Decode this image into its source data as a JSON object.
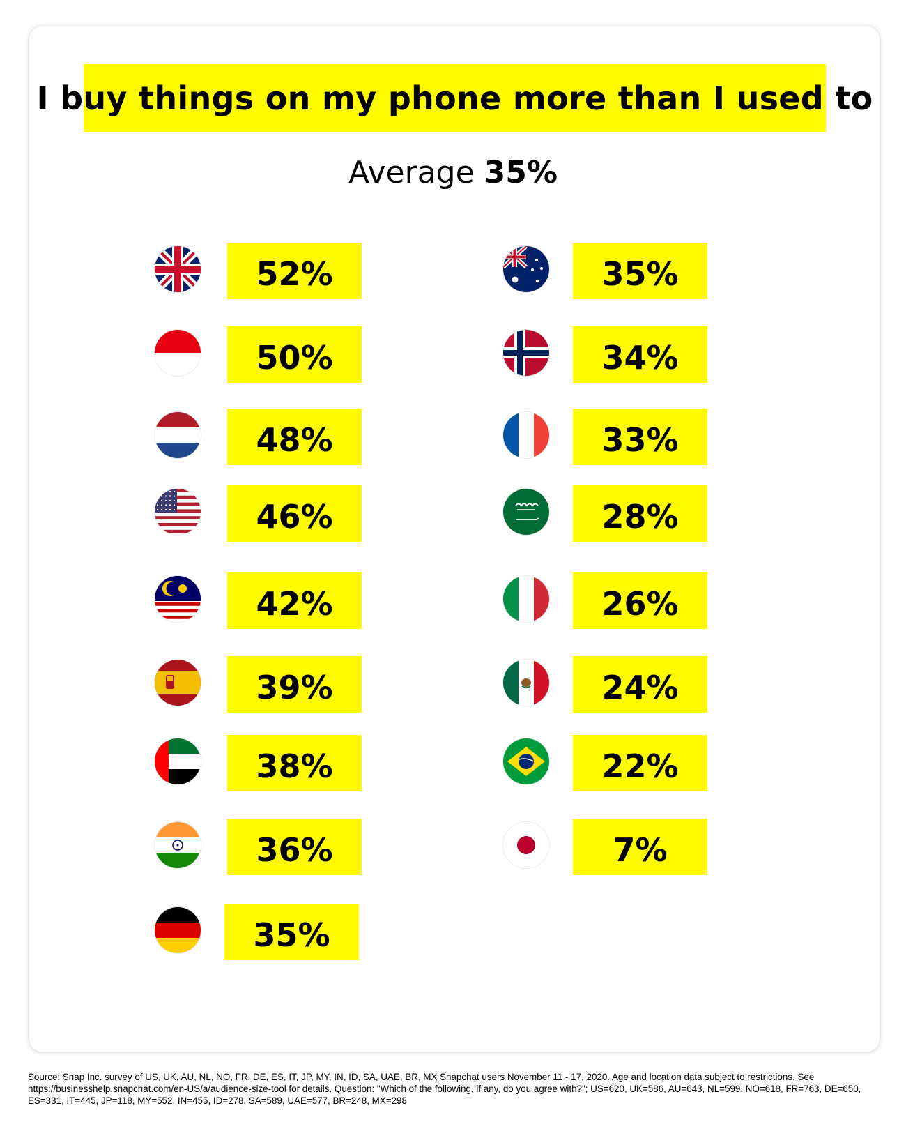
{
  "chart_data": {
    "type": "table",
    "title": "I buy things on my phone more than I used to",
    "average_label": "Average",
    "average_value": "35%",
    "columns": [
      {
        "rows": [
          {
            "flag": "uk-flag-icon",
            "value": 52,
            "label": "52%"
          },
          {
            "flag": "indonesia-flag-icon",
            "value": 50,
            "label": "50%"
          },
          {
            "flag": "netherlands-flag-icon",
            "value": 48,
            "label": "48%"
          },
          {
            "flag": "usa-flag-icon",
            "value": 46,
            "label": "46%"
          },
          {
            "flag": "malaysia-flag-icon",
            "value": 42,
            "label": "42%"
          },
          {
            "flag": "spain-flag-icon",
            "value": 39,
            "label": "39%"
          },
          {
            "flag": "uae-flag-icon",
            "value": 38,
            "label": "38%"
          },
          {
            "flag": "india-flag-icon",
            "value": 36,
            "label": "36%"
          },
          {
            "flag": "germany-flag-icon",
            "value": 35,
            "label": "35%"
          }
        ]
      },
      {
        "rows": [
          {
            "flag": "australia-flag-icon",
            "value": 35,
            "label": "35%"
          },
          {
            "flag": "norway-flag-icon",
            "value": 34,
            "label": "34%"
          },
          {
            "flag": "france-flag-icon",
            "value": 33,
            "label": "33%"
          },
          {
            "flag": "saudi-arabia-flag-icon",
            "value": 28,
            "label": "28%"
          },
          {
            "flag": "italy-flag-icon",
            "value": 26,
            "label": "26%"
          },
          {
            "flag": "mexico-flag-icon",
            "value": 24,
            "label": "24%"
          },
          {
            "flag": "brazil-flag-icon",
            "value": 22,
            "label": "22%"
          },
          {
            "flag": "japan-flag-icon",
            "value": 7,
            "label": "7%"
          }
        ]
      }
    ]
  },
  "colors": {
    "highlight": "#FFFC00",
    "text": "#000000",
    "background": "#FFFFFF"
  },
  "source_note": "Source: Snap Inc. survey of US, UK, AU, NL, NO, FR, DE, ES, IT, JP, MY, IN, ID, SA, UAE, BR, MX Snapchat users November 11 - 17, 2020. Age and location data subject to restrictions. See https://businesshelp.snapchat.com/en-US/a/audience-size-tool for details. Question: \"Which of the following, if any, do you agree with?\"; US=620, UK=586, AU=643, NL=599, NO=618, FR=763, DE=650, ES=331, IT=445, JP=118, MY=552, IN=455, ID=278, SA=589, UAE=577, BR=248, MX=298"
}
